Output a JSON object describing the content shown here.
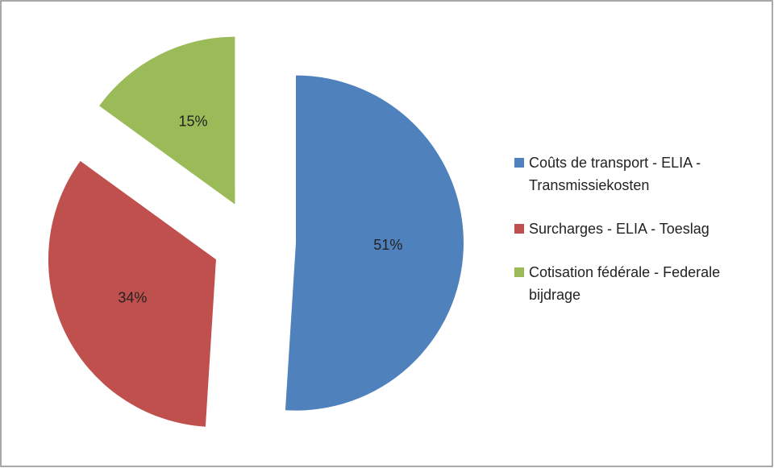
{
  "chart_data": {
    "type": "pie",
    "categories": [
      "Coûts de transport - ELIA - Transmissiekosten",
      "Surcharges - ELIA - Toeslag",
      "Cotisation fédérale - Federale bijdrage"
    ],
    "values": [
      51,
      34,
      15
    ],
    "value_labels": [
      "51%",
      "34%",
      "15%"
    ],
    "colors": [
      "#4f81bd",
      "#c0504d",
      "#9bbb59"
    ],
    "legend": "right"
  }
}
